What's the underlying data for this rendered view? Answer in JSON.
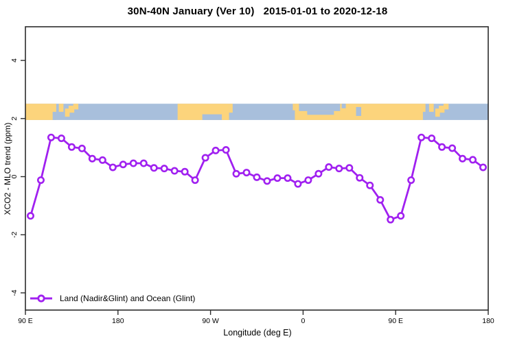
{
  "title": "30N-40N January (Ver 10)   2015-01-01 to 2020-12-18",
  "axes": {
    "xlabel": "Longitude (deg E)",
    "ylabel": "XCO2 - MLO trend (ppm)",
    "x_range_deg": [
      90,
      540
    ],
    "y_range": [
      -4.6,
      5.2
    ],
    "x_ticks": [
      {
        "deg": 90,
        "label": "90 E"
      },
      {
        "deg": 180,
        "label": "180"
      },
      {
        "deg": 270,
        "label": "90 W"
      },
      {
        "deg": 360,
        "label": "0"
      },
      {
        "deg": 450,
        "label": "90 E"
      },
      {
        "deg": 540,
        "label": "180"
      }
    ],
    "y_ticks": [
      {
        "v": -4,
        "label": "-4"
      },
      {
        "v": -2,
        "label": "-2"
      },
      {
        "v": 0,
        "label": "0"
      },
      {
        "v": 2,
        "label": "2"
      },
      {
        "v": 4,
        "label": "4"
      }
    ]
  },
  "legend": {
    "label": "Land (Nadir&Glint) and Ocean (Glint)"
  },
  "colors": {
    "series": "#A020F0",
    "marker_fill": "#ffffff",
    "ocean": "#A8BFDC",
    "land": "#FCD47C",
    "axis": "#2b2b2b"
  },
  "map_band": {
    "top_value": 2.51,
    "bottom_value": 1.95,
    "land": [
      [
        90,
        120,
        0,
        1
      ],
      [
        122.5,
        127,
        0,
        0.5
      ],
      [
        128.5,
        133,
        0.3,
        0.8
      ],
      [
        132,
        137.5,
        0.12,
        0.55
      ],
      [
        136.5,
        141.5,
        0,
        0.35
      ],
      [
        238,
        288,
        0,
        1
      ],
      [
        288,
        291.5,
        0,
        0.55
      ],
      [
        350,
        352,
        0,
        0.4
      ],
      [
        352,
        479,
        0,
        1
      ],
      [
        482.5,
        487,
        0,
        0.5
      ],
      [
        488.5,
        493,
        0.3,
        0.8
      ],
      [
        492,
        497.5,
        0.12,
        0.55
      ],
      [
        496.5,
        501.5,
        0,
        0.35
      ]
    ],
    "sea": [
      [
        116.5,
        120,
        0.5,
        1
      ],
      [
        262,
        281,
        0.65,
        1
      ],
      [
        356,
        396,
        0,
        0.45
      ],
      [
        364,
        390,
        0.45,
        0.68
      ],
      [
        397.5,
        401.5,
        0,
        0.28
      ],
      [
        411.5,
        416.5,
        0.2,
        0.75
      ],
      [
        476.5,
        480,
        0.5,
        1
      ]
    ]
  },
  "chart_data": {
    "type": "line",
    "title": "30N-40N January (Ver 10)   2015-01-01 to 2020-12-18",
    "xlabel": "Longitude (deg E)",
    "ylabel": "XCO2 - MLO trend (ppm)",
    "xlim_unwrapped_deg": [
      90,
      540
    ],
    "ylim": [
      -4.6,
      5.2
    ],
    "grid": false,
    "legend_position": "bottom-left",
    "marker": "open-circle",
    "point_spacing_deg": 10,
    "series": [
      {
        "name": "Land (Nadir&Glint) and Ocean (Glint)",
        "color": "#A020F0",
        "x_unwrapped_deg": [
          95,
          105,
          115,
          125,
          135,
          145,
          155,
          165,
          175,
          185,
          195,
          205,
          215,
          225,
          235,
          245,
          255,
          265,
          275,
          285,
          295,
          305,
          315,
          325,
          335,
          345,
          355,
          365,
          375,
          385,
          395,
          405,
          415,
          425,
          435,
          445,
          455,
          465,
          475,
          485,
          495,
          505,
          515,
          525,
          535
        ],
        "values": [
          -1.35,
          -0.12,
          1.35,
          1.32,
          1.02,
          0.97,
          0.62,
          0.57,
          0.32,
          0.42,
          0.46,
          0.46,
          0.3,
          0.28,
          0.2,
          0.17,
          -0.12,
          0.65,
          0.9,
          0.92,
          0.1,
          0.14,
          -0.02,
          -0.15,
          -0.05,
          -0.05,
          -0.25,
          -0.12,
          0.1,
          0.33,
          0.28,
          0.3,
          -0.04,
          -0.3,
          -0.8,
          -1.48,
          -1.35,
          -0.12,
          1.35,
          1.32,
          1.02,
          0.98,
          0.62,
          0.58,
          0.32
        ]
      }
    ],
    "annotations": "Horizontal strip near y=2 is a world coastline map of the 30N-40N latitude band (land=tan, ocean=blue) aligned to the longitude axis"
  }
}
